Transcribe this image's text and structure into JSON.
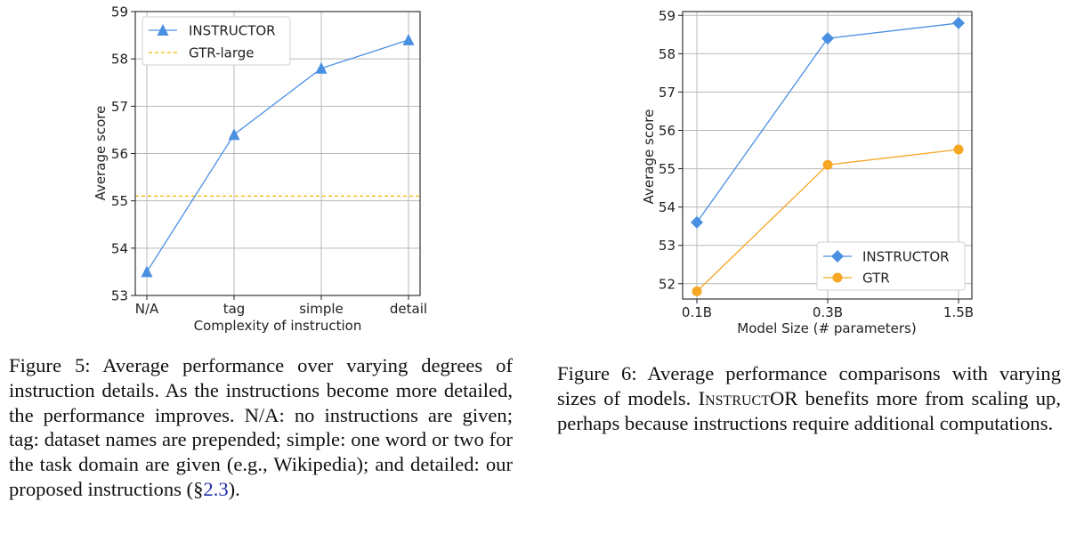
{
  "chart_data": [
    {
      "type": "line",
      "xlabel": "Complexity of instruction",
      "ylabel": "Average score",
      "categories": [
        "N/A",
        "tag",
        "simple",
        "detail"
      ],
      "ylim": [
        53,
        59
      ],
      "yticks": [
        "53",
        "54",
        "55",
        "56",
        "57",
        "58",
        "59"
      ],
      "grid": true,
      "legend_position": "top-left",
      "series": [
        {
          "name": "INSTRUCTOR",
          "values": [
            53.5,
            56.4,
            57.8,
            58.4
          ],
          "color": "#4a90e2",
          "marker": "triangle"
        }
      ],
      "reference_lines": [
        {
          "name": "GTR-large",
          "value": 55.1,
          "color": "#f5b400",
          "style": "dashed"
        }
      ]
    },
    {
      "type": "line",
      "xlabel": "Model Size (# parameters)",
      "ylabel": "Average score",
      "categories": [
        "0.1B",
        "0.3B",
        "1.5B"
      ],
      "ylim": [
        51.6,
        59.1
      ],
      "yticks": [
        "52",
        "53",
        "54",
        "55",
        "56",
        "57",
        "58",
        "59"
      ],
      "grid": true,
      "legend_position": "bottom-right",
      "series": [
        {
          "name": "INSTRUCTOR",
          "values": [
            53.6,
            58.4,
            58.8
          ],
          "color": "#4a90e2",
          "marker": "diamond"
        },
        {
          "name": "GTR",
          "values": [
            51.8,
            55.1,
            55.5
          ],
          "color": "#f5a623",
          "marker": "circle"
        }
      ]
    }
  ],
  "captions": {
    "fig5": {
      "text": "Figure 5: Average performance over varying degrees of instruction details. As the instructions become more detailed, the performance improves. N/A: no instructions are given; tag: dataset names are prepended; simple: one word or two for the task domain are given (e.g., Wikipedia); and detailed: our proposed instructions (§",
      "ref": "2.3",
      "close": ")."
    },
    "fig6": {
      "before": "Figure 6: Average performance comparisons with varying sizes of models. ",
      "model": "InstructOR",
      "after": " benefits more from scaling up, perhaps because instructions require additional computations."
    }
  }
}
